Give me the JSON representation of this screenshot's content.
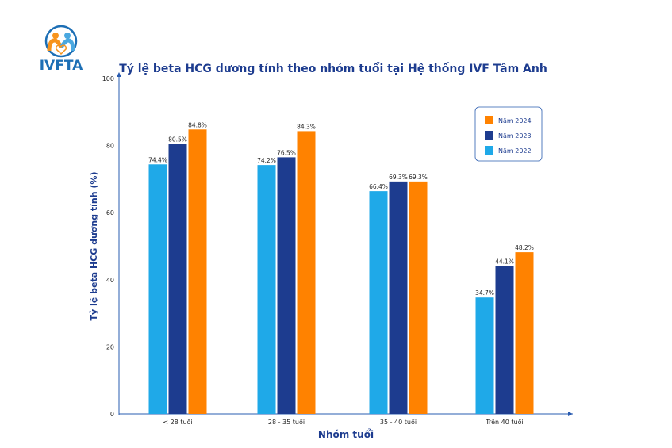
{
  "logo": {
    "text": "IVFTA"
  },
  "colors": {
    "2024": "#ff8200",
    "2023": "#1d3c8f",
    "2022": "#1fa9e8",
    "text": "#1d3c8f"
  },
  "chart_data": {
    "type": "bar",
    "title": "Tỷ lệ beta HCG dương tính theo nhóm tuổi tại Hệ thống IVF Tâm Anh",
    "xlabel": "Nhóm tuổi",
    "ylabel": "Tỷ lệ beta HCG dương tính (%)",
    "ylim": [
      0,
      100
    ],
    "yticks": [
      0,
      20,
      40,
      60,
      80,
      100
    ],
    "categories": [
      "< 28 tuổi",
      "28 - 35 tuổi",
      "35 - 40 tuổi",
      "Trên 40 tuổi"
    ],
    "series": [
      {
        "name": "Năm 2022",
        "values": [
          74.4,
          74.2,
          66.4,
          34.7
        ],
        "labels": [
          "74.4%",
          "74.2%",
          "66.4%",
          "34.7%"
        ],
        "color": "#1fa9e8"
      },
      {
        "name": "Năm 2023",
        "values": [
          80.5,
          76.5,
          69.3,
          44.1
        ],
        "labels": [
          "80.5%",
          "76.5%",
          "69.3%",
          "44.1%"
        ],
        "color": "#1d3c8f"
      },
      {
        "name": "Năm 2024",
        "values": [
          84.8,
          84.3,
          69.3,
          48.2
        ],
        "labels": [
          "84.8%",
          "84.3%",
          "69.3%",
          "48.2%"
        ],
        "color": "#ff8200"
      }
    ],
    "legend": {
      "placement": "top-right",
      "order": [
        "Năm 2024",
        "Năm 2023",
        "Năm 2022"
      ]
    },
    "grid": false
  }
}
